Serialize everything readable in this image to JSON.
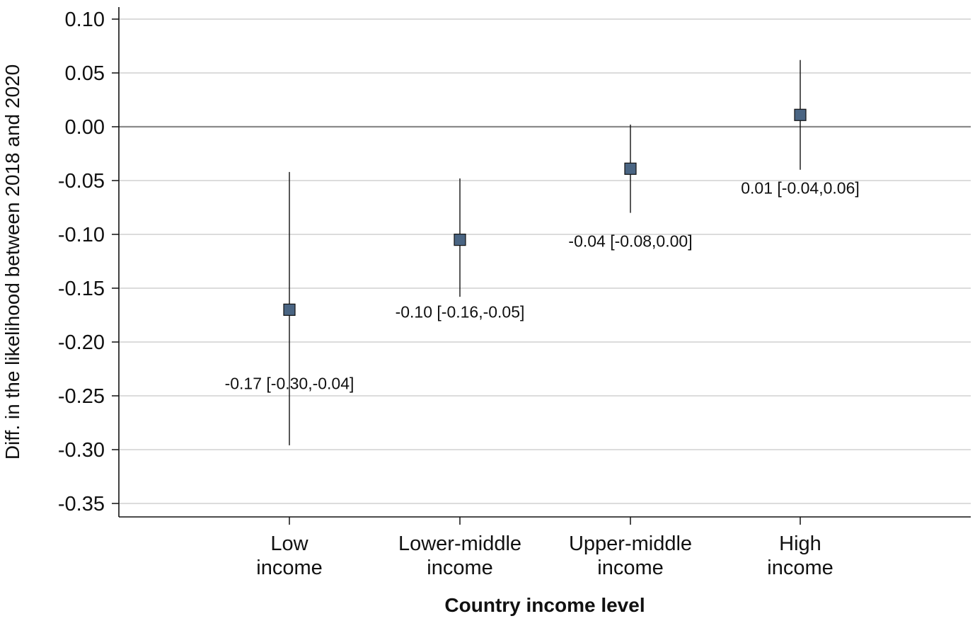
{
  "chart_data": {
    "type": "scatter",
    "title": "",
    "xlabel": "Country income level",
    "ylabel": "Diff. in the likelihood between 2018 and 2020",
    "categories": [
      [
        "Low",
        "income"
      ],
      [
        "Lower-middle",
        "income"
      ],
      [
        "Upper-middle",
        "income"
      ],
      [
        "High",
        "income"
      ]
    ],
    "series": [
      {
        "values": [
          -0.17,
          -0.105,
          -0.039,
          0.011
        ],
        "ci_low": [
          -0.296,
          -0.158,
          -0.08,
          -0.04
        ],
        "ci_high": [
          -0.042,
          -0.048,
          0.002,
          0.062
        ],
        "labels": [
          "-0.17 [-0.30,-0.04]",
          "-0.10 [-0.16,-0.05]",
          "-0.04 [-0.08,0.00]",
          "0.01 [-0.04,0.06]"
        ]
      }
    ],
    "ylim": [
      -0.35,
      0.1
    ],
    "yticks": [
      "0.10",
      "0.05",
      "0.00",
      "-0.05",
      "-0.10",
      "-0.15",
      "-0.20",
      "-0.25",
      "-0.30",
      "-0.35"
    ],
    "reference_line": 0,
    "grid": true,
    "marker": "square",
    "marker_color": "#4a6583",
    "reference_line_color": "#8a8a8a",
    "grid_color": "#c8c8c8"
  }
}
